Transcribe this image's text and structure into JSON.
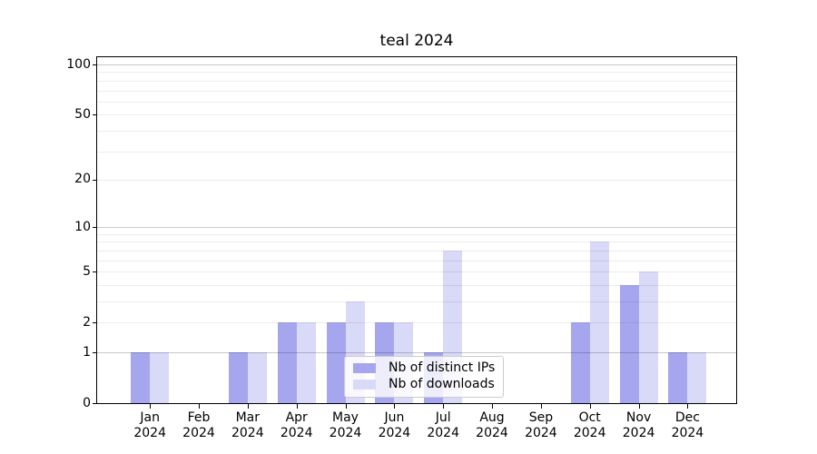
{
  "chart_data": {
    "type": "bar",
    "title": "teal 2024",
    "categories": [
      "Jan",
      "Feb",
      "Mar",
      "Apr",
      "May",
      "Jun",
      "Jul",
      "Aug",
      "Sep",
      "Oct",
      "Nov",
      "Dec"
    ],
    "year_label": "2024",
    "series": [
      {
        "name": "Nb of distinct IPs",
        "color": "#a6a6ef",
        "values": [
          1,
          0,
          1,
          2,
          2,
          2,
          1,
          0,
          0,
          2,
          4,
          1
        ]
      },
      {
        "name": "Nb of downloads",
        "color": "#d9d9f8",
        "values": [
          1,
          0,
          1,
          2,
          3,
          2,
          7,
          0,
          0,
          8,
          5,
          1
        ]
      }
    ],
    "xlabel": "",
    "ylabel": "",
    "yscale": "log1p",
    "ylim": [
      0,
      110
    ],
    "yticks": [
      0,
      1,
      2,
      5,
      10,
      20,
      50,
      100
    ],
    "major_gridlines": [
      1,
      10,
      100
    ],
    "minor_gridlines": [
      3,
      4,
      6,
      7,
      8,
      9,
      30,
      40,
      60,
      70,
      80,
      90
    ],
    "grid": true,
    "legend_position": "lower center",
    "colors": {
      "major_grid": "#c9c9c9",
      "minor_grid": "#ececec",
      "axis": "#000000",
      "background": "#ffffff"
    }
  }
}
